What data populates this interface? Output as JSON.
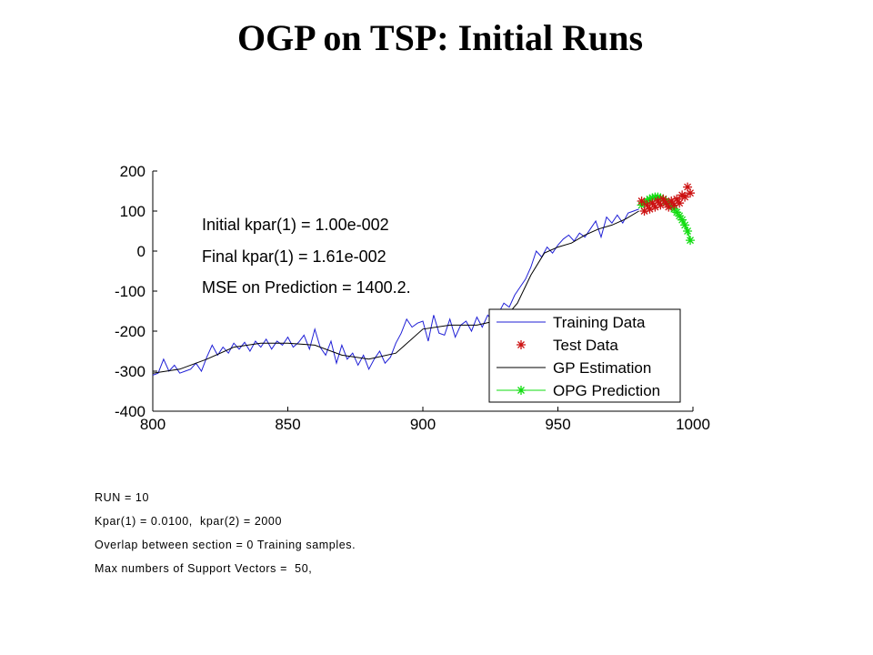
{
  "title": "OGP on TSP: Initial Runs",
  "chart_data": {
    "type": "line",
    "xlim": [
      800,
      1000
    ],
    "ylim": [
      -400,
      200
    ],
    "xticks": [
      800,
      850,
      900,
      950,
      1000
    ],
    "yticks": [
      -400,
      -300,
      -200,
      -100,
      0,
      100,
      200
    ],
    "grid": false,
    "legend": "bottom-right",
    "annotations": [
      "Initial kpar(1) = 1.00e-002",
      "Final kpar(1) = 1.61e-002",
      "MSE on Prediction = 1400.2."
    ],
    "series": [
      {
        "name": "Training Data",
        "color": "#1f1fd6",
        "marker": "none",
        "x": [
          800,
          802,
          804,
          806,
          808,
          810,
          812,
          814,
          816,
          818,
          820,
          822,
          824,
          826,
          828,
          830,
          832,
          834,
          836,
          838,
          840,
          842,
          844,
          846,
          848,
          850,
          852,
          854,
          856,
          858,
          860,
          862,
          864,
          866,
          868,
          870,
          872,
          874,
          876,
          878,
          880,
          882,
          884,
          886,
          888,
          890,
          892,
          894,
          896,
          898,
          900,
          902,
          904,
          906,
          908,
          910,
          912,
          914,
          916,
          918,
          920,
          922,
          924,
          926,
          928,
          930,
          932,
          934,
          936,
          938,
          940,
          942,
          944,
          946,
          948,
          950,
          952,
          954,
          956,
          958,
          960,
          962,
          964,
          966,
          968,
          970,
          972,
          974,
          976,
          978,
          980
        ],
        "y": [
          -310,
          -305,
          -270,
          -300,
          -285,
          -305,
          -300,
          -295,
          -280,
          -300,
          -265,
          -235,
          -260,
          -240,
          -255,
          -230,
          -245,
          -228,
          -250,
          -225,
          -240,
          -220,
          -245,
          -225,
          -235,
          -215,
          -240,
          -228,
          -210,
          -245,
          -195,
          -240,
          -260,
          -225,
          -280,
          -235,
          -270,
          -255,
          -285,
          -260,
          -295,
          -270,
          -250,
          -280,
          -265,
          -230,
          -205,
          -170,
          -190,
          -180,
          -175,
          -225,
          -160,
          -205,
          -210,
          -170,
          -215,
          -185,
          -175,
          -200,
          -165,
          -190,
          -160,
          -175,
          -155,
          -130,
          -140,
          -110,
          -90,
          -70,
          -40,
          0,
          -15,
          10,
          -5,
          15,
          30,
          40,
          25,
          45,
          35,
          55,
          75,
          35,
          85,
          70,
          90,
          70,
          95,
          100,
          105
        ]
      },
      {
        "name": "Test Data",
        "color": "#cc1111",
        "marker": "star",
        "x": [
          981,
          982,
          983,
          984,
          985,
          986,
          987,
          988,
          989,
          990,
          991,
          992,
          993,
          994,
          995,
          996,
          997,
          998,
          999
        ],
        "y": [
          125,
          100,
          115,
          105,
          120,
          110,
          125,
          115,
          130,
          120,
          110,
          125,
          115,
          130,
          120,
          140,
          135,
          160,
          145
        ]
      },
      {
        "name": "GP Estimation",
        "color": "#000000",
        "marker": "none",
        "x": [
          800,
          810,
          820,
          830,
          840,
          850,
          860,
          870,
          880,
          890,
          900,
          910,
          920,
          930,
          935,
          940,
          945,
          950,
          955,
          960,
          965,
          970,
          975,
          980
        ],
        "y": [
          -305,
          -295,
          -270,
          -240,
          -230,
          -230,
          -235,
          -260,
          -270,
          -255,
          -195,
          -185,
          -185,
          -170,
          -130,
          -60,
          -5,
          10,
          20,
          40,
          55,
          65,
          80,
          100
        ]
      },
      {
        "name": "OPG Prediction",
        "color": "#11dd11",
        "marker": "star",
        "x": [
          981,
          982,
          983,
          984,
          985,
          986,
          987,
          988,
          989,
          990,
          991,
          992,
          993,
          994,
          995,
          996,
          997,
          998,
          999
        ],
        "y": [
          115,
          120,
          125,
          130,
          133,
          135,
          135,
          133,
          130,
          125,
          120,
          112,
          105,
          97,
          88,
          78,
          65,
          50,
          27
        ]
      }
    ]
  },
  "notes": [
    "RUN = 10",
    "Kpar(1) = 0.0100,  kpar(2) = 2000",
    "Overlap between section = 0 Training samples.",
    "Max numbers of Support Vectors =  50,"
  ]
}
